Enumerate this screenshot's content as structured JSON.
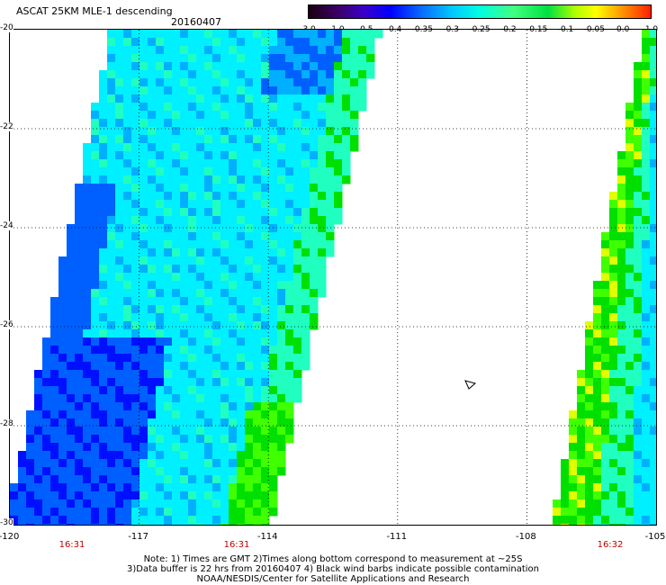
{
  "header": {
    "title": "ASCAT 25KM MLE-1 descending",
    "date": "20160407"
  },
  "colorbar": {
    "labels": [
      "-3.0",
      "-1.0",
      "-0.5",
      "-0.4",
      "-0.35",
      "-0.3",
      "-0.25",
      "-0.2",
      "-0.15",
      "-0.1",
      "-0.05",
      "0.0",
      "1.0"
    ]
  },
  "map": {
    "lon_range": [
      -120,
      -105
    ],
    "lat_range": [
      -30,
      -20
    ],
    "x_ticks": [
      "-120",
      "-117",
      "-114",
      "-111",
      "-108",
      "-105"
    ],
    "y_ticks": [
      "-20",
      "-22",
      "-24",
      "-26",
      "-28",
      "-30"
    ],
    "swath_times": [
      "16:31",
      "16:31",
      "16:32"
    ],
    "colors": {
      "deep": "#0010ff",
      "blue": "#0060ff",
      "lightblue": "#00b0ff",
      "cyan": "#00f0ff",
      "aqua": "#20ffc0",
      "green": "#00e000",
      "lime": "#40ff00",
      "yellow": "#e0ff00",
      "orange": "#ff9000",
      "red": "#ff3000"
    }
  },
  "notes": {
    "line1": "Note: 1) Times are GMT 2)Times along bottom correspond to measurement at ~25S",
    "line2": "3)Data buffer is 22 hrs from 20160407 4) Black wind barbs indicate possible contamination",
    "line3": "NOAA/NESDIS/Center for Satellite Applications and Research"
  }
}
